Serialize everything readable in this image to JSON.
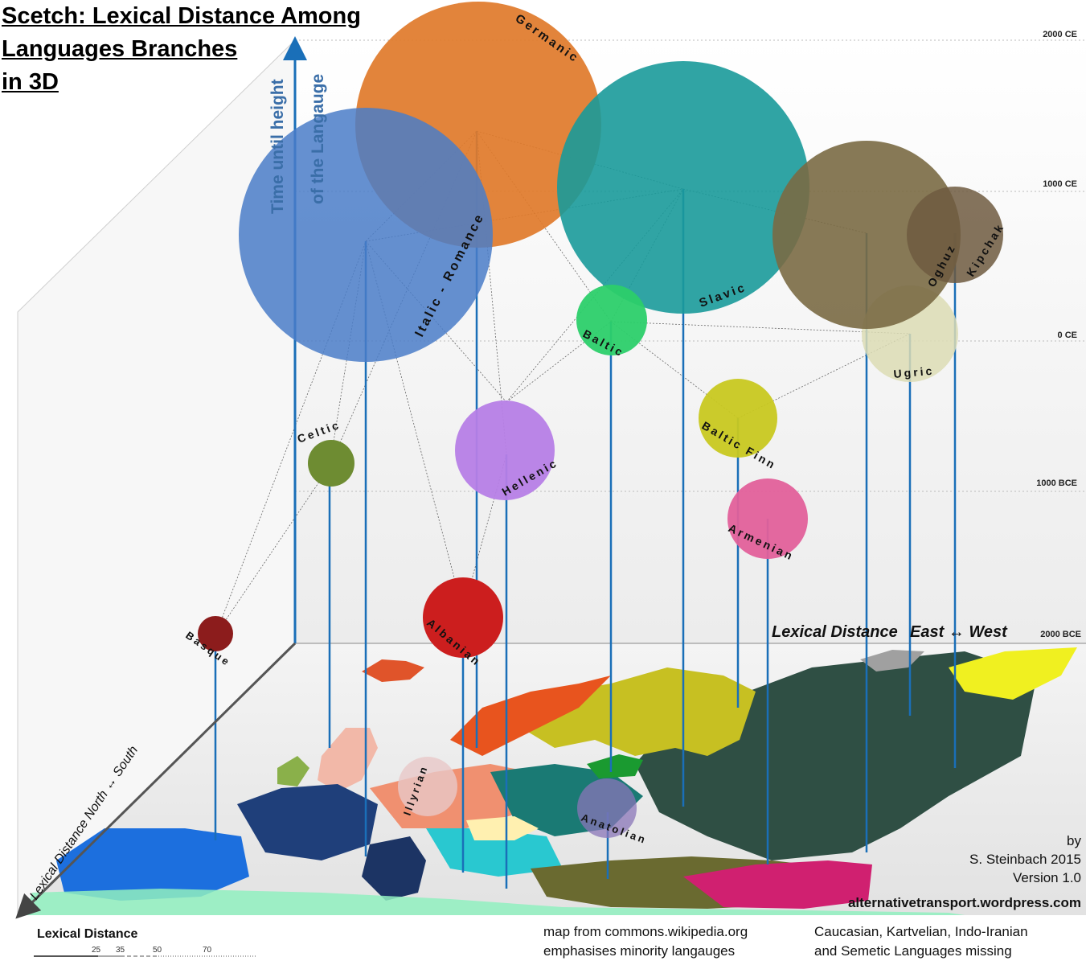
{
  "title_lines": [
    "Scetch: Lexical Distance Among",
    "Languages Branches",
    "in 3D"
  ],
  "axes": {
    "vertical_label_line1": "Time until height",
    "vertical_label_line2": "of the Langauge",
    "east_west_label_a": "Lexical Distance",
    "east_west_label_b": "East ↔ West",
    "north_south_label": "Lexical Distance  North ↔ South"
  },
  "time_ticks": [
    "2000 CE",
    "1000 CE",
    "0 CE",
    "1000 BCE",
    "2000 BCE"
  ],
  "branches": [
    {
      "name": "Germanic",
      "color": "#e07a2a"
    },
    {
      "name": "Italic - Romance",
      "color": "#4a7cc8"
    },
    {
      "name": "Slavic",
      "color": "#1a9a9a"
    },
    {
      "name": "Oghuz",
      "color": "#7a6a44"
    },
    {
      "name": "Kipchak",
      "color": "#6e5a40"
    },
    {
      "name": "Ugric",
      "color": "#dcdcb4"
    },
    {
      "name": "Baltic",
      "color": "#2ccf6a"
    },
    {
      "name": "Baltic Finn",
      "color": "#c8c820"
    },
    {
      "name": "Celtic",
      "color": "#6e8c32"
    },
    {
      "name": "Hellenic",
      "color": "#b67ee6"
    },
    {
      "name": "Armenian",
      "color": "#e2609a"
    },
    {
      "name": "Albanian",
      "color": "#cc1e1e"
    },
    {
      "name": "Basque",
      "color": "#8c1c1c"
    },
    {
      "name": "Illyrian",
      "color": "#e8c8c8"
    },
    {
      "name": "Anatolian",
      "color": "#8a76b8"
    }
  ],
  "scale": {
    "label": "Lexical Distance",
    "ticks": [
      "25",
      "35",
      "50",
      "70"
    ]
  },
  "notes": {
    "map_line1": "map  from commons.wikipedia.org",
    "map_line2": "emphasises minority langauges",
    "missing_line1": "Caucasian, Kartvelian, Indo-Iranian",
    "missing_line2": "and Semetic Languages missing"
  },
  "credits": {
    "by": "by",
    "author": "S. Steinbach 2015",
    "version": "Version 1.0",
    "site": "alternativetransport.wordpress.com"
  }
}
